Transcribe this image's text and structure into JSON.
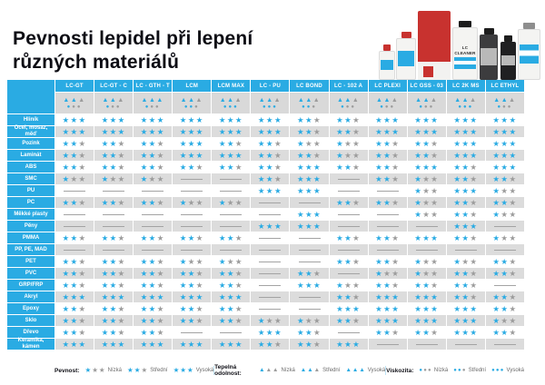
{
  "title": "Pevnosti lepidel při lepení různých materiálů",
  "photo": {
    "visible_label": "LC CLEANER"
  },
  "colors": {
    "accent": "#2aabe3",
    "inactive_gray": "#9c9c9c",
    "row_alt": "#dcdcdc",
    "marks_bg": "#d9d9d9",
    "header_blue": "#2aabe3"
  },
  "icons": {
    "strength": "star",
    "heat": "triangle",
    "viscosity": "circle"
  },
  "table": {
    "products": [
      {
        "name": "LC-GT",
        "heat": 2,
        "viscosity": 1
      },
      {
        "name": "LC-GT - C",
        "heat": 2,
        "viscosity": 1
      },
      {
        "name": "LC - GTH - T",
        "heat": 3,
        "viscosity": 1
      },
      {
        "name": "LCM",
        "heat": 2,
        "viscosity": 2
      },
      {
        "name": "LCM MAX",
        "heat": 2,
        "viscosity": 3
      },
      {
        "name": "LC - PU",
        "heat": 2,
        "viscosity": 3
      },
      {
        "name": "LC BOND",
        "heat": 2,
        "viscosity": 2
      },
      {
        "name": "LC - 102 A",
        "heat": 2,
        "viscosity": 1
      },
      {
        "name": "LC PLEXI",
        "heat": 2,
        "viscosity": 1
      },
      {
        "name": "LC GSS - 03",
        "heat": 2,
        "viscosity": 1
      },
      {
        "name": "LC 2K MS",
        "heat": 2,
        "viscosity": 3
      },
      {
        "name": "LC ETHYL",
        "heat": 2,
        "viscosity": 1
      }
    ],
    "rows": [
      {
        "material": "Hliník",
        "ratings": [
          3,
          3,
          3,
          3,
          3,
          3,
          2,
          2,
          3,
          3,
          3,
          3
        ]
      },
      {
        "material": "Ocel, mosaz, měď",
        "ratings": [
          3,
          3,
          3,
          3,
          3,
          3,
          2,
          2,
          3,
          3,
          3,
          3
        ]
      },
      {
        "material": "Pozink",
        "ratings": [
          2,
          2,
          2,
          3,
          2,
          2,
          1,
          1,
          2,
          2,
          3,
          3
        ]
      },
      {
        "material": "Laminát",
        "ratings": [
          2,
          2,
          2,
          3,
          3,
          2,
          2,
          1,
          2,
          2,
          3,
          3
        ]
      },
      {
        "material": "ABS",
        "ratings": [
          2,
          2,
          2,
          2,
          2,
          2,
          3,
          2,
          2,
          3,
          2,
          3
        ]
      },
      {
        "material": "SMC",
        "ratings": [
          1,
          1,
          1,
          0,
          0,
          2,
          3,
          0,
          2,
          1,
          2,
          2
        ]
      },
      {
        "material": "PU",
        "ratings": [
          0,
          0,
          0,
          0,
          0,
          3,
          3,
          0,
          0,
          1,
          3,
          1
        ]
      },
      {
        "material": "PC",
        "ratings": [
          2,
          2,
          2,
          1,
          1,
          0,
          0,
          2,
          2,
          1,
          2,
          2
        ]
      },
      {
        "material": "Měkké plasty",
        "ratings": [
          0,
          0,
          0,
          0,
          0,
          0,
          3,
          0,
          0,
          1,
          2,
          1
        ]
      },
      {
        "material": "Pěny",
        "ratings": [
          0,
          0,
          0,
          0,
          0,
          3,
          3,
          0,
          0,
          0,
          3,
          0
        ]
      },
      {
        "material": "PMMA",
        "ratings": [
          2,
          2,
          2,
          2,
          2,
          0,
          0,
          2,
          2,
          3,
          2,
          1
        ]
      },
      {
        "material": "PP, PE, MAD",
        "ratings": [
          0,
          0,
          0,
          0,
          0,
          0,
          0,
          0,
          0,
          0,
          0,
          0
        ]
      },
      {
        "material": "PET",
        "ratings": [
          2,
          2,
          2,
          1,
          1,
          0,
          0,
          2,
          2,
          1,
          1,
          2
        ]
      },
      {
        "material": "PVC",
        "ratings": [
          2,
          2,
          2,
          2,
          2,
          0,
          2,
          0,
          1,
          1,
          2,
          2
        ]
      },
      {
        "material": "GRP/FRP",
        "ratings": [
          2,
          2,
          2,
          2,
          2,
          0,
          3,
          1,
          2,
          2,
          2,
          0
        ]
      },
      {
        "material": "Akryl",
        "ratings": [
          3,
          3,
          3,
          3,
          3,
          0,
          0,
          2,
          3,
          3,
          2,
          2
        ]
      },
      {
        "material": "Epoxy",
        "ratings": [
          2,
          2,
          2,
          2,
          2,
          0,
          0,
          3,
          3,
          3,
          3,
          2
        ]
      },
      {
        "material": "Sklo",
        "ratings": [
          2,
          2,
          2,
          2,
          2,
          1,
          1,
          2,
          3,
          3,
          3,
          1
        ]
      },
      {
        "material": "Dřevo",
        "ratings": [
          2,
          2,
          2,
          0,
          0,
          3,
          2,
          0,
          2,
          2,
          3,
          2
        ]
      },
      {
        "material": "Keramika, kámen",
        "ratings": [
          3,
          3,
          3,
          3,
          3,
          2,
          2,
          3,
          0,
          0,
          0,
          0
        ]
      }
    ]
  },
  "legend": {
    "strength_label": "Pevnost:",
    "heat_label": "Tepelná odolnost:",
    "viscosity_label": "Viskozita:",
    "levels": [
      {
        "label": "Nízká",
        "value": 1
      },
      {
        "label": "Střední",
        "value": 2
      },
      {
        "label": "Vysoká",
        "value": 3
      }
    ]
  }
}
